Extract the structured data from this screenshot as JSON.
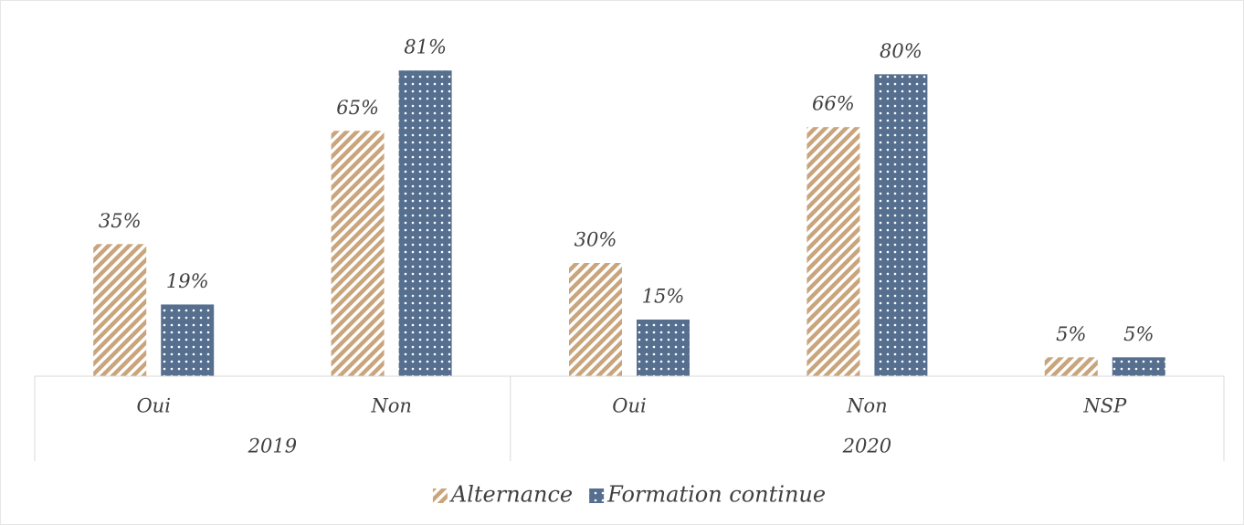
{
  "chart_data": {
    "type": "bar",
    "categories": [
      "Oui",
      "Non",
      "Oui",
      "Non",
      "NSP"
    ],
    "groups": [
      {
        "name": "2019",
        "span": 2
      },
      {
        "name": "2020",
        "span": 3
      }
    ],
    "series": [
      {
        "name": "Alternance",
        "color": "#c9a57d",
        "values": [
          35,
          65,
          30,
          66,
          5
        ],
        "value_labels": [
          "35%",
          "65%",
          "30%",
          "66%",
          "5%"
        ]
      },
      {
        "name": "Formation continue",
        "color": "#566f8f",
        "values": [
          19,
          81,
          15,
          80,
          5
        ],
        "value_labels": [
          "19%",
          "81%",
          "15%",
          "80%",
          "5%"
        ]
      }
    ],
    "ylim": [
      0,
      90
    ],
    "legend": "bottom"
  }
}
